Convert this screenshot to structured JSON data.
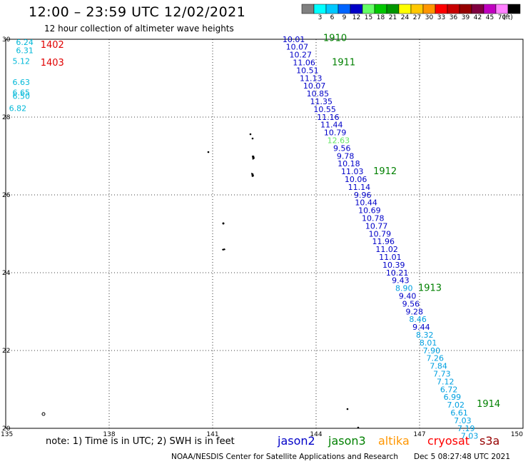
{
  "header": {
    "title": "12:00 – 23:59 UTC 12/02/2021",
    "subtitle": "12 hour collection of altimeter wave heights"
  },
  "color_scale": {
    "unit": "(ft)",
    "bins": [
      {
        "label": "",
        "color": "#808080"
      },
      {
        "label": "3",
        "color": "#00ffff"
      },
      {
        "label": "6",
        "color": "#00c8ff"
      },
      {
        "label": "9",
        "color": "#0064ff"
      },
      {
        "label": "12",
        "color": "#0000c8"
      },
      {
        "label": "15",
        "color": "#64ff64"
      },
      {
        "label": "18",
        "color": "#00c800"
      },
      {
        "label": "21",
        "color": "#009600"
      },
      {
        "label": "24",
        "color": "#ffff00"
      },
      {
        "label": "27",
        "color": "#ffc800"
      },
      {
        "label": "30",
        "color": "#ff9600"
      },
      {
        "label": "33",
        "color": "#ff0000"
      },
      {
        "label": "36",
        "color": "#c80000"
      },
      {
        "label": "39",
        "color": "#960000"
      },
      {
        "label": "42",
        "color": "#800040"
      },
      {
        "label": "45",
        "color": "#c000c0"
      },
      {
        "label": "70",
        "color": "#ff80ff"
      },
      {
        "label": "",
        "color": "#000000"
      }
    ]
  },
  "map": {
    "lon_range": [
      135,
      150
    ],
    "lat_range": [
      20,
      30
    ],
    "lon_ticks": [
      "135",
      "138",
      "141",
      "144",
      "147",
      "150"
    ],
    "lat_ticks": [
      "20",
      "22",
      "24",
      "26",
      "28",
      "30"
    ],
    "grid": "dotted"
  },
  "colors": {
    "jason2": "#0000c8",
    "jason3": "#008000",
    "altika": "#ff9600",
    "cryosat": "#ff0000",
    "s3a": "#960000",
    "light_blue": "#00b8d8",
    "mid_blue": "#00a0e0",
    "light_green": "#64e664",
    "time_green": "#008000",
    "time_red": "#e00000"
  },
  "left_track": {
    "wave_heights": [
      {
        "value": "6.24",
        "lon": 135.55,
        "lat": 29.85,
        "color": "light_blue"
      },
      {
        "value": "6.31",
        "lon": 135.55,
        "lat": 29.64,
        "color": "light_blue"
      },
      {
        "value": "5.12",
        "lon": 135.45,
        "lat": 29.37,
        "color": "light_blue"
      },
      {
        "value": "6.63",
        "lon": 135.45,
        "lat": 28.83,
        "color": "light_blue"
      },
      {
        "value": "6.65",
        "lon": 135.45,
        "lat": 28.56,
        "color": "light_blue"
      },
      {
        "value": "6.50",
        "lon": 135.45,
        "lat": 28.47,
        "color": "light_blue"
      },
      {
        "value": "6.82",
        "lon": 135.35,
        "lat": 28.16,
        "color": "light_blue"
      }
    ],
    "time_labels": [
      {
        "value": "1402",
        "lon": 136.35,
        "lat": 29.78,
        "color": "time_red"
      },
      {
        "value": "1403",
        "lon": 136.35,
        "lat": 29.32,
        "color": "time_red"
      }
    ]
  },
  "main_track": {
    "wave_heights": [
      {
        "value": "10.01",
        "lon": 143.35,
        "lat": 29.93,
        "color": "jason2"
      },
      {
        "value": "10.07",
        "lon": 143.45,
        "lat": 29.73,
        "color": "jason2"
      },
      {
        "value": "10.27",
        "lon": 143.55,
        "lat": 29.53,
        "color": "jason2"
      },
      {
        "value": "11.06",
        "lon": 143.65,
        "lat": 29.33,
        "color": "jason2"
      },
      {
        "value": "10.51",
        "lon": 143.75,
        "lat": 29.13,
        "color": "jason2"
      },
      {
        "value": "11.13",
        "lon": 143.85,
        "lat": 28.93,
        "color": "jason2"
      },
      {
        "value": "10.07",
        "lon": 143.95,
        "lat": 28.73,
        "color": "jason2"
      },
      {
        "value": "10.85",
        "lon": 144.05,
        "lat": 28.53,
        "color": "jason2"
      },
      {
        "value": "11.35",
        "lon": 144.15,
        "lat": 28.33,
        "color": "jason2"
      },
      {
        "value": "10.55",
        "lon": 144.25,
        "lat": 28.13,
        "color": "jason2"
      },
      {
        "value": "11.16",
        "lon": 144.35,
        "lat": 27.93,
        "color": "jason2"
      },
      {
        "value": "11.44",
        "lon": 144.45,
        "lat": 27.73,
        "color": "jason2"
      },
      {
        "value": "10.79",
        "lon": 144.55,
        "lat": 27.53,
        "color": "jason2"
      },
      {
        "value": "12.63",
        "lon": 144.65,
        "lat": 27.33,
        "color": "light_green"
      },
      {
        "value": "9.56",
        "lon": 144.75,
        "lat": 27.13,
        "color": "jason2"
      },
      {
        "value": "9.78",
        "lon": 144.85,
        "lat": 26.93,
        "color": "jason2"
      },
      {
        "value": "10.18",
        "lon": 144.95,
        "lat": 26.73,
        "color": "jason2"
      },
      {
        "value": "11.03",
        "lon": 145.05,
        "lat": 26.53,
        "color": "jason2"
      },
      {
        "value": "10.06",
        "lon": 145.15,
        "lat": 26.33,
        "color": "jason2"
      },
      {
        "value": "11.14",
        "lon": 145.25,
        "lat": 26.13,
        "color": "jason2"
      },
      {
        "value": "9.96",
        "lon": 145.35,
        "lat": 25.93,
        "color": "jason2"
      },
      {
        "value": "10.44",
        "lon": 145.45,
        "lat": 25.73,
        "color": "jason2"
      },
      {
        "value": "10.69",
        "lon": 145.55,
        "lat": 25.53,
        "color": "jason2"
      },
      {
        "value": "10.78",
        "lon": 145.65,
        "lat": 25.33,
        "color": "jason2"
      },
      {
        "value": "10.77",
        "lon": 145.75,
        "lat": 25.13,
        "color": "jason2"
      },
      {
        "value": "10.79",
        "lon": 145.85,
        "lat": 24.93,
        "color": "jason2"
      },
      {
        "value": "11.96",
        "lon": 145.95,
        "lat": 24.73,
        "color": "jason2"
      },
      {
        "value": "11.02",
        "lon": 146.05,
        "lat": 24.53,
        "color": "jason2"
      },
      {
        "value": "11.01",
        "lon": 146.15,
        "lat": 24.33,
        "color": "jason2"
      },
      {
        "value": "10.39",
        "lon": 146.25,
        "lat": 24.13,
        "color": "jason2"
      },
      {
        "value": "10.21",
        "lon": 146.35,
        "lat": 23.93,
        "color": "jason2"
      },
      {
        "value": "9.43",
        "lon": 146.45,
        "lat": 23.73,
        "color": "jason2"
      },
      {
        "value": "8.90",
        "lon": 146.55,
        "lat": 23.53,
        "color": "mid_blue"
      },
      {
        "value": "9.40",
        "lon": 146.65,
        "lat": 23.33,
        "color": "jason2"
      },
      {
        "value": "9.56",
        "lon": 146.75,
        "lat": 23.13,
        "color": "jason2"
      },
      {
        "value": "9.28",
        "lon": 146.85,
        "lat": 22.93,
        "color": "jason2"
      },
      {
        "value": "8.46",
        "lon": 146.95,
        "lat": 22.73,
        "color": "mid_blue"
      },
      {
        "value": "9.44",
        "lon": 147.05,
        "lat": 22.53,
        "color": "jason2"
      },
      {
        "value": "8.32",
        "lon": 147.15,
        "lat": 22.33,
        "color": "mid_blue"
      },
      {
        "value": "8.01",
        "lon": 147.25,
        "lat": 22.13,
        "color": "mid_blue"
      },
      {
        "value": "7.90",
        "lon": 147.35,
        "lat": 21.93,
        "color": "mid_blue"
      },
      {
        "value": "7.26",
        "lon": 147.45,
        "lat": 21.73,
        "color": "mid_blue"
      },
      {
        "value": "7.84",
        "lon": 147.55,
        "lat": 21.53,
        "color": "mid_blue"
      },
      {
        "value": "7.73",
        "lon": 147.65,
        "lat": 21.33,
        "color": "mid_blue"
      },
      {
        "value": "7.12",
        "lon": 147.75,
        "lat": 21.13,
        "color": "mid_blue"
      },
      {
        "value": "6.72",
        "lon": 147.85,
        "lat": 20.93,
        "color": "mid_blue"
      },
      {
        "value": "6.99",
        "lon": 147.95,
        "lat": 20.73,
        "color": "mid_blue"
      },
      {
        "value": "7.02",
        "lon": 148.05,
        "lat": 20.53,
        "color": "mid_blue"
      },
      {
        "value": "6.61",
        "lon": 148.15,
        "lat": 20.33,
        "color": "mid_blue"
      },
      {
        "value": "7.03",
        "lon": 148.25,
        "lat": 20.13,
        "color": "mid_blue"
      },
      {
        "value": "7.19",
        "lon": 148.35,
        "lat": 19.93,
        "color": "mid_blue"
      },
      {
        "value": "7.03",
        "lon": 148.45,
        "lat": 19.73,
        "color": "mid_blue"
      }
    ],
    "time_labels": [
      {
        "value": "1910",
        "lon": 144.55,
        "lat": 29.95,
        "color": "time_green"
      },
      {
        "value": "1911",
        "lon": 144.8,
        "lat": 29.33,
        "color": "time_green"
      },
      {
        "value": "1912",
        "lon": 146.0,
        "lat": 26.53,
        "color": "time_green"
      },
      {
        "value": "1913",
        "lon": 147.3,
        "lat": 23.53,
        "color": "time_green"
      },
      {
        "value": "1914",
        "lon": 149.0,
        "lat": 20.55,
        "color": "time_green"
      }
    ]
  },
  "footer": {
    "note": "note: 1) Time is in UTC; 2) SWH is in feet",
    "satellites": [
      {
        "name": "jason2",
        "color": "jason2"
      },
      {
        "name": "jason3",
        "color": "jason3"
      },
      {
        "name": "altika",
        "color": "altika"
      },
      {
        "name": "cryosat",
        "color": "cryosat"
      },
      {
        "name": "s3a",
        "color": "s3a"
      }
    ],
    "credit": "NOAA/NESDIS Center for Satellite Applications and Research",
    "generated": "Dec  5 08:27:48 UTC 2021"
  }
}
